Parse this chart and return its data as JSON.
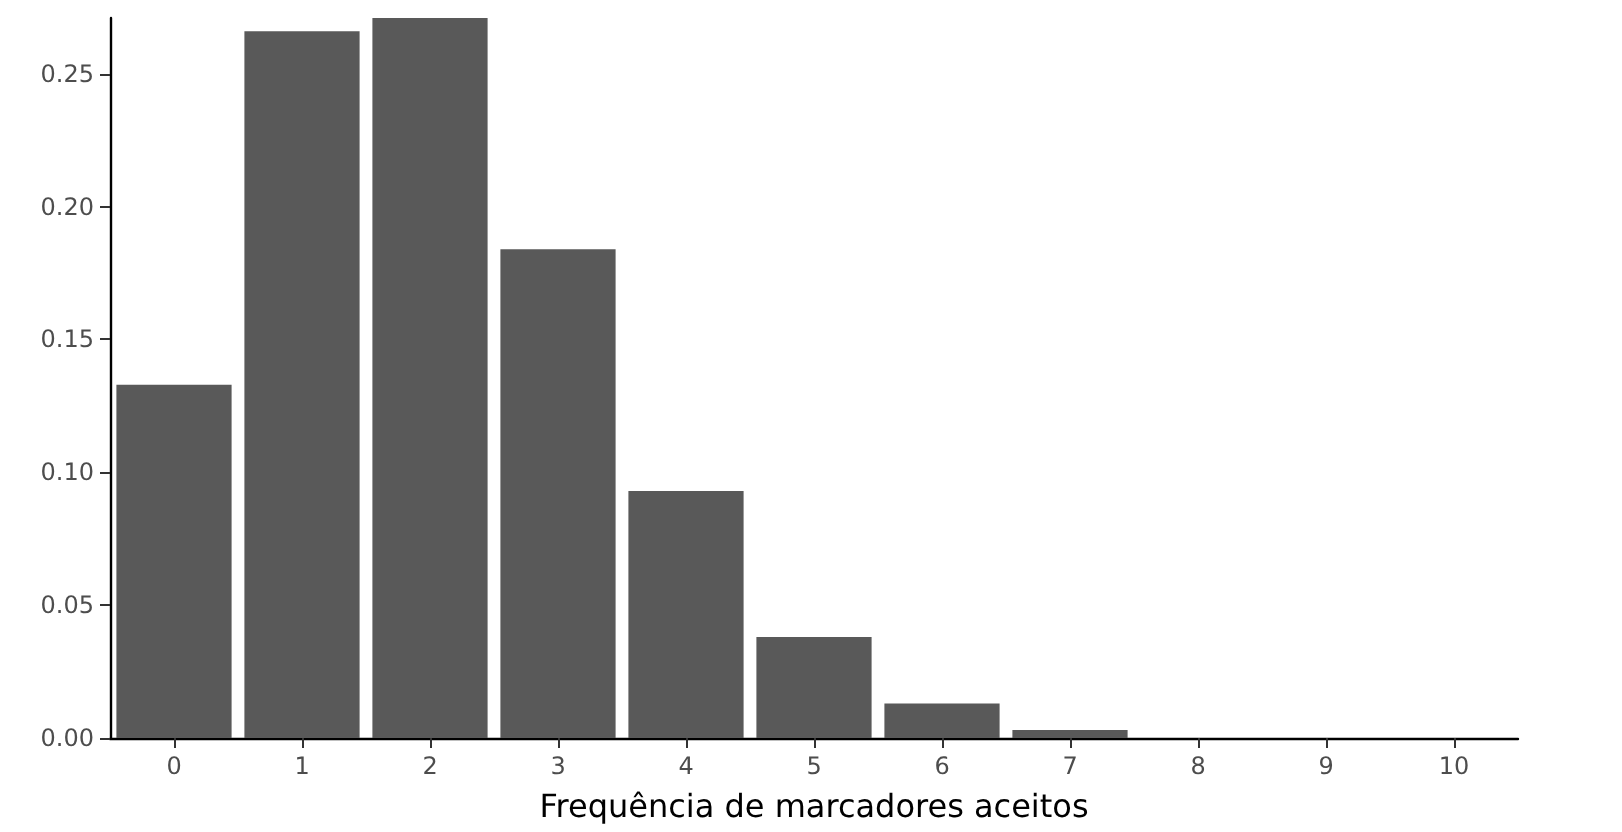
{
  "chart_data": {
    "type": "bar",
    "xlabel": "Frequência de marcadores aceitos",
    "categories": [
      "0",
      "1",
      "2",
      "3",
      "4",
      "5",
      "6",
      "7",
      "8",
      "9",
      "10"
    ],
    "values": [
      0.133,
      0.266,
      0.271,
      0.184,
      0.093,
      0.038,
      0.013,
      0.003,
      null,
      null,
      null
    ],
    "color": "#595959",
    "ylim": [
      0,
      0.271
    ],
    "yticks": [
      {
        "value": 0,
        "label": "0.00"
      },
      {
        "value": 0.05,
        "label": "0.05"
      },
      {
        "value": 0.1,
        "label": "0.10"
      },
      {
        "value": 0.15,
        "label": "0.15"
      },
      {
        "value": 0.2,
        "label": "0.20"
      },
      {
        "value": 0.25,
        "label": "0.25"
      }
    ],
    "grid": false
  }
}
